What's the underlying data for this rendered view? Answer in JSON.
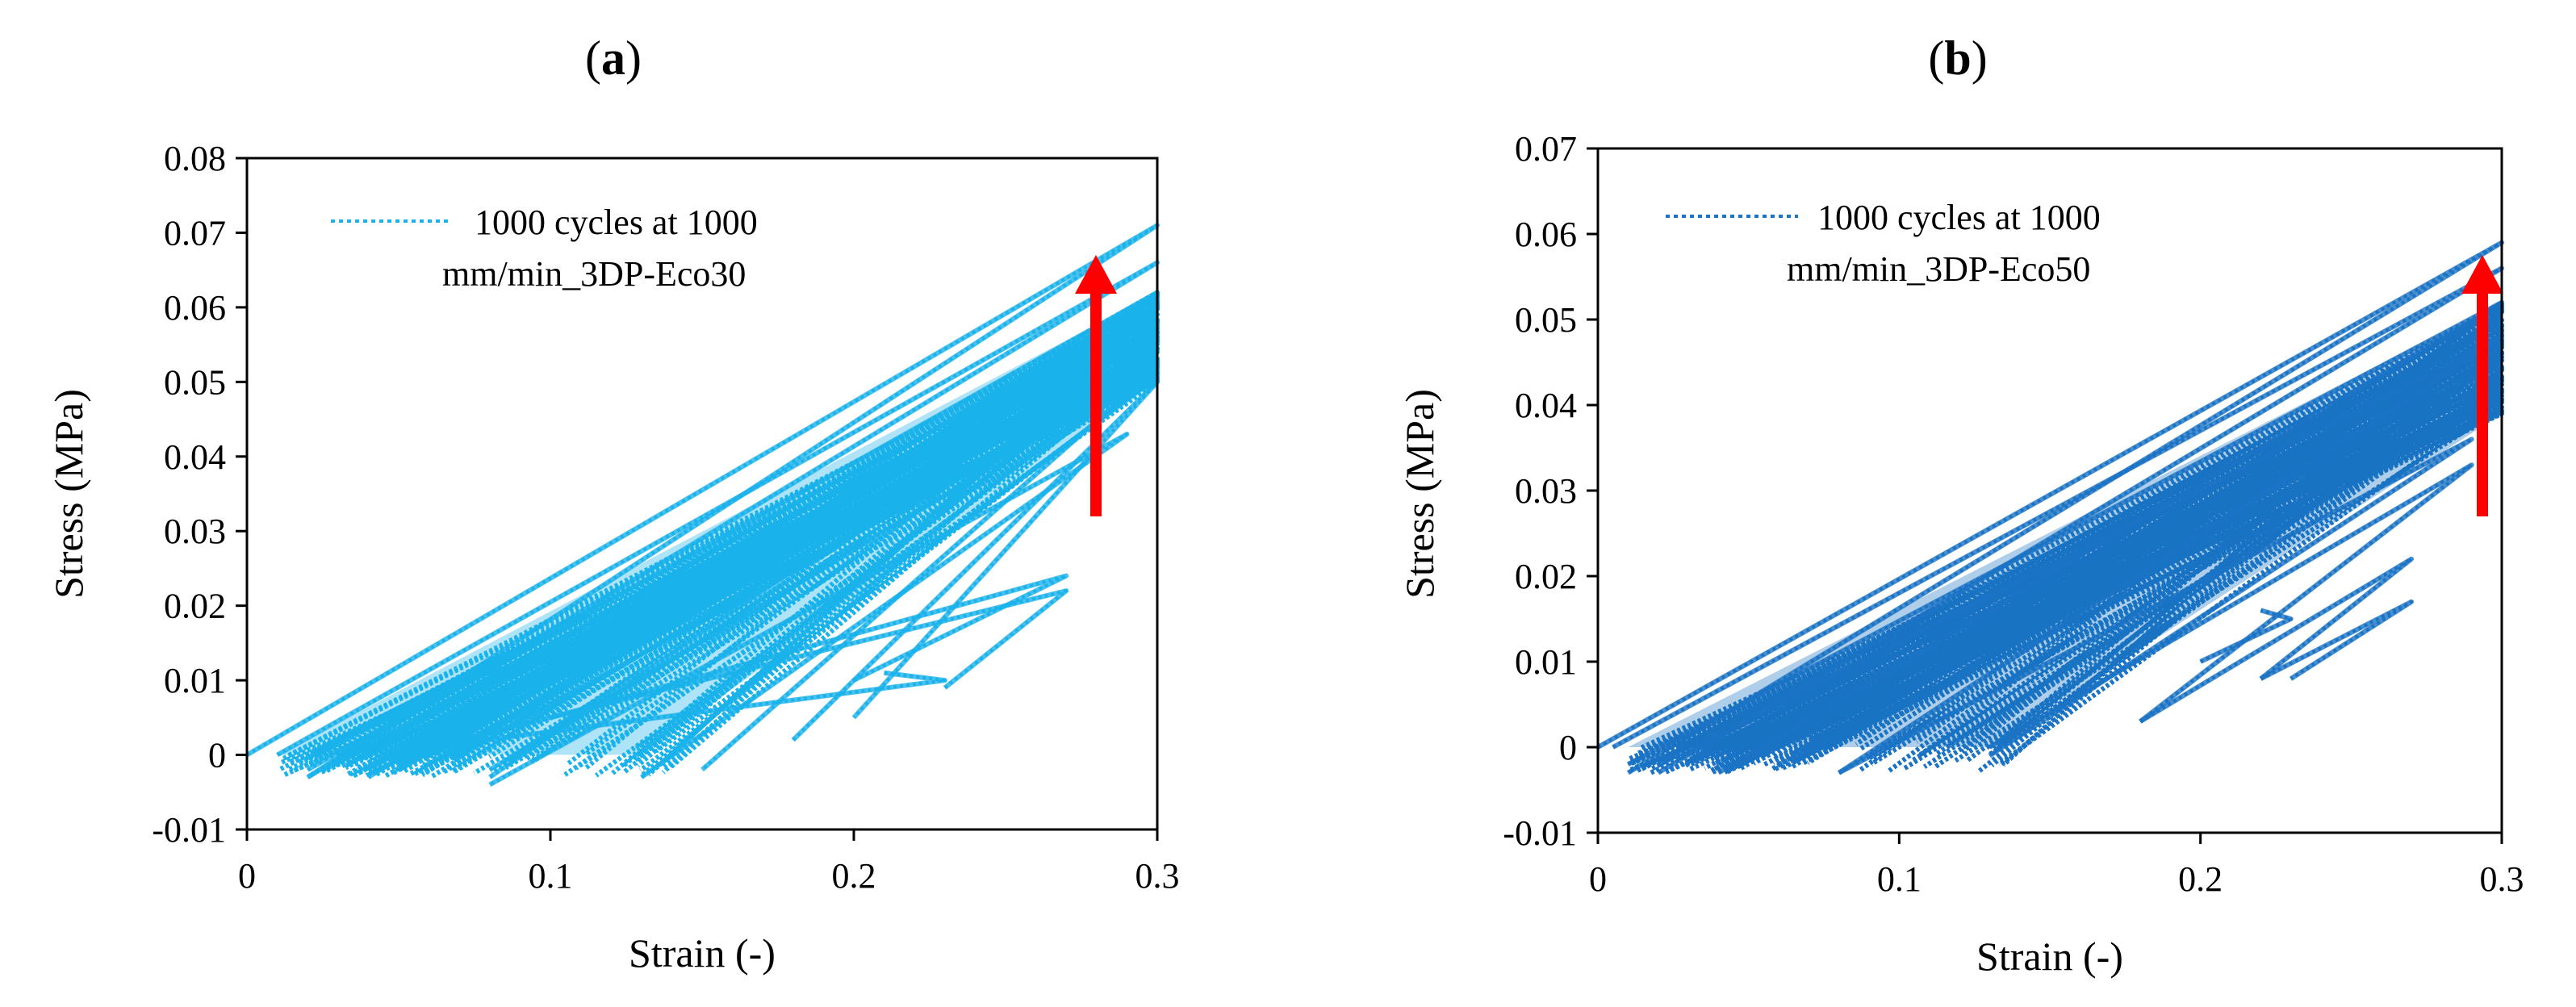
{
  "figure": {
    "panels": [
      {
        "label_letter": "a",
        "series_color": "#1ab2eb",
        "arrow_color": "#ff0000"
      },
      {
        "label_letter": "b",
        "series_color": "#1a73c4",
        "arrow_color": "#ff0000"
      }
    ]
  },
  "chart_data": [
    {
      "type": "line",
      "title": "",
      "xlabel": "Strain (-)",
      "ylabel": "Stress (MPa)",
      "xlim": [
        0,
        0.3
      ],
      "ylim": [
        -0.01,
        0.08
      ],
      "xticks": [
        "0",
        "0.1",
        "0.2",
        "0.3"
      ],
      "yticks": [
        "-0.01",
        "0",
        "0.01",
        "0.02",
        "0.03",
        "0.04",
        "0.05",
        "0.06",
        "0.07",
        "0.08"
      ],
      "grid": false,
      "legend_position": "top-left",
      "series": [
        {
          "name": "1000 cycles at 1000 mm/min_3DP-Eco30",
          "line_style": "dotted",
          "cycles": [
            {
              "x": [
                0,
                0.3,
                0.02
              ],
              "y": [
                0.0,
                0.071,
                -0.003
              ]
            },
            {
              "x": [
                0.01,
                0.3,
                0.02
              ],
              "y": [
                0.0,
                0.066,
                -0.003
              ]
            },
            {
              "x": [
                0.02,
                0.3,
                0.04
              ],
              "y": [
                -0.002,
                0.062,
                -0.003
              ]
            },
            {
              "x": [
                0.04,
                0.3,
                0.08
              ],
              "y": [
                -0.002,
                0.058,
                -0.003
              ]
            },
            {
              "x": [
                0.08,
                0.3,
                0.15
              ],
              "y": [
                -0.002,
                0.052,
                -0.002
              ]
            },
            {
              "x": [
                0.18,
                0.3,
                0.2
              ],
              "y": [
                0.002,
                0.05,
                0.005
              ]
            },
            {
              "x": [
                0.13,
                0.29,
                0.08
              ],
              "y": [
                -0.003,
                0.043,
                -0.004
              ]
            },
            {
              "x": [
                0.2,
                0.27,
                0.1
              ],
              "y": [
                0.01,
                0.024,
                0.005
              ]
            },
            {
              "x": [
                0.23,
                0.27,
                0.05
              ],
              "y": [
                0.009,
                0.022,
                0.0
              ]
            },
            {
              "x": [
                0.21,
                0.23,
                0.06
              ],
              "y": [
                0.011,
                0.01,
                0.001
              ]
            }
          ],
          "band": {
            "x_start": 0.01,
            "x_end": 0.3,
            "y_end_min": 0.05,
            "y_end_max": 0.062
          }
        }
      ],
      "annotations": [
        "upward arrow at strain 0.3 indicating increasing stress"
      ]
    },
    {
      "type": "line",
      "title": "",
      "xlabel": "Strain (-)",
      "ylabel": "Stress (MPa)",
      "xlim": [
        0,
        0.3
      ],
      "ylim": [
        -0.01,
        0.07
      ],
      "xticks": [
        "0",
        "0.1",
        "0.2",
        "0.3"
      ],
      "yticks": [
        "-0.01",
        "0",
        "0.01",
        "0.02",
        "0.03",
        "0.04",
        "0.05",
        "0.06",
        "0.07"
      ],
      "grid": false,
      "legend_position": "top-left",
      "series": [
        {
          "name": "1000 cycles at 1000 mm/min_3DP-Eco50",
          "line_style": "dotted",
          "cycles": [
            {
              "x": [
                0,
                0.3,
                0.01
              ],
              "y": [
                0.0,
                0.059,
                -0.003
              ]
            },
            {
              "x": [
                0.005,
                0.3,
                0.02
              ],
              "y": [
                0.0,
                0.056,
                -0.003
              ]
            },
            {
              "x": [
                0.01,
                0.3,
                0.04
              ],
              "y": [
                -0.002,
                0.052,
                -0.003
              ]
            },
            {
              "x": [
                0.02,
                0.3,
                0.08
              ],
              "y": [
                -0.002,
                0.048,
                -0.003
              ]
            },
            {
              "x": [
                0.08,
                0.29,
                0.13
              ],
              "y": [
                -0.003,
                0.036,
                -0.001
              ]
            },
            {
              "x": [
                0.13,
                0.29,
                0.18
              ],
              "y": [
                0.0,
                0.033,
                0.003
              ]
            },
            {
              "x": [
                0.18,
                0.27,
                0.22
              ],
              "y": [
                0.003,
                0.022,
                0.008
              ]
            },
            {
              "x": [
                0.22,
                0.27,
                0.23
              ],
              "y": [
                0.008,
                0.017,
                0.008
              ]
            },
            {
              "x": [
                0.2,
                0.23,
                0.22
              ],
              "y": [
                0.01,
                0.015,
                0.016
              ]
            }
          ],
          "band": {
            "x_start": 0.01,
            "x_end": 0.3,
            "y_end_min": 0.039,
            "y_end_max": 0.052
          }
        }
      ],
      "annotations": [
        "upward arrow at strain 0.3 indicating increasing stress"
      ]
    }
  ]
}
